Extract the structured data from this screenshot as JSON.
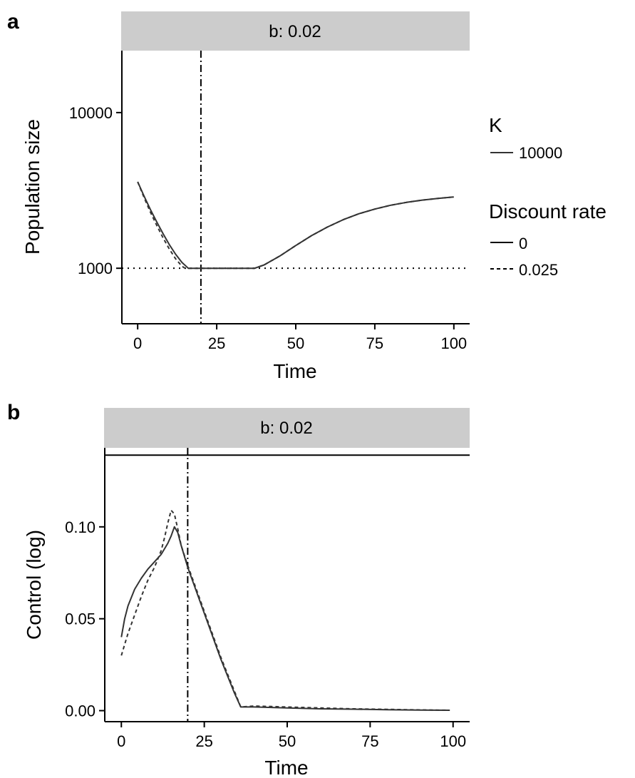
{
  "legend": {
    "k_title": "K",
    "k_entries": [
      {
        "label": "10000",
        "style": "solid"
      }
    ],
    "discount_title": "Discount rate",
    "discount_entries": [
      {
        "label": "0",
        "style": "solid"
      },
      {
        "label": "0.025",
        "style": "dashed"
      }
    ]
  },
  "chart_data": [
    {
      "panel_label": "a",
      "type": "line",
      "facet_strip": "b: 0.02",
      "xlabel": "Time",
      "ylabel": "Population size",
      "xlim": [
        -5,
        105
      ],
      "ylim": [
        440,
        25000
      ],
      "y_scale": "log",
      "x_ticks": [
        0,
        25,
        50,
        75,
        100
      ],
      "x_tick_labels": [
        "0",
        "25",
        "50",
        "75",
        "100"
      ],
      "y_ticks": [
        1000,
        10000
      ],
      "y_tick_labels": [
        "1000",
        "10000"
      ],
      "vline": {
        "x": 20,
        "style": "dashdot"
      },
      "hline": {
        "y": 1000,
        "style": "dotted"
      },
      "grid": false,
      "series": [
        {
          "name": "0",
          "style": "solid",
          "color": "#333333",
          "x": [
            0,
            2,
            4,
            6,
            8,
            10,
            12,
            14,
            16,
            20,
            25,
            30,
            35,
            37,
            40,
            45,
            50,
            55,
            60,
            65,
            70,
            75,
            80,
            85,
            90,
            95,
            100
          ],
          "y": [
            3590,
            2910,
            2390,
            1990,
            1670,
            1420,
            1230,
            1090,
            1000,
            1000,
            1000,
            1000,
            1000,
            1000,
            1050,
            1200,
            1400,
            1620,
            1840,
            2050,
            2240,
            2400,
            2540,
            2650,
            2740,
            2810,
            2870
          ]
        },
        {
          "name": "0.025",
          "style": "dashed",
          "color": "#333333",
          "x": [
            0,
            2,
            4,
            6,
            8,
            10,
            12,
            14,
            15,
            20,
            25,
            30,
            35,
            37,
            40,
            45,
            50,
            55,
            60,
            65,
            70,
            75,
            80,
            85,
            90,
            95,
            100
          ],
          "y": [
            3590,
            2850,
            2300,
            1890,
            1570,
            1330,
            1150,
            1030,
            1000,
            1000,
            1000,
            1000,
            1000,
            1000,
            1050,
            1200,
            1400,
            1620,
            1840,
            2050,
            2240,
            2400,
            2540,
            2650,
            2740,
            2810,
            2870
          ]
        }
      ]
    },
    {
      "panel_label": "b",
      "type": "line",
      "facet_strip": "b: 0.02",
      "xlabel": "Time",
      "ylabel": "Control (log)",
      "xlim": [
        -5,
        105
      ],
      "ylim": [
        -0.006,
        0.143
      ],
      "x_ticks": [
        0,
        25,
        50,
        75,
        100
      ],
      "x_tick_labels": [
        "0",
        "25",
        "50",
        "75",
        "100"
      ],
      "y_ticks": [
        0,
        0.05,
        0.1
      ],
      "y_tick_labels": [
        "0.00",
        "0.05",
        "0.10"
      ],
      "vline": {
        "x": 20,
        "style": "dashdot"
      },
      "hline": {
        "y": 0.139,
        "style": "solid"
      },
      "grid": false,
      "series": [
        {
          "name": "0",
          "style": "solid",
          "color": "#333333",
          "x": [
            0,
            1,
            2,
            4,
            6,
            8,
            10,
            12,
            14,
            15,
            16,
            17,
            18,
            20,
            22,
            24,
            26,
            28,
            30,
            32,
            34,
            36,
            40,
            50,
            60,
            70,
            80,
            90,
            99
          ],
          "y": [
            0.04,
            0.05,
            0.057,
            0.066,
            0.072,
            0.077,
            0.081,
            0.085,
            0.091,
            0.095,
            0.1,
            0.097,
            0.09,
            0.078,
            0.068,
            0.058,
            0.048,
            0.038,
            0.028,
            0.019,
            0.01,
            0.002,
            0.002,
            0.0015,
            0.001,
            0.0008,
            0.0005,
            0.0003,
            0.0002
          ]
        },
        {
          "name": "0.025",
          "style": "dashed",
          "color": "#333333",
          "x": [
            0,
            1,
            2,
            4,
            6,
            8,
            10,
            12,
            13,
            14,
            15,
            16,
            17,
            18,
            20,
            22,
            24,
            26,
            28,
            30,
            32,
            34,
            36,
            40,
            50,
            60,
            70,
            80,
            90,
            99
          ],
          "y": [
            0.03,
            0.036,
            0.042,
            0.052,
            0.062,
            0.071,
            0.078,
            0.087,
            0.094,
            0.102,
            0.109,
            0.107,
            0.099,
            0.09,
            0.079,
            0.069,
            0.059,
            0.049,
            0.039,
            0.029,
            0.02,
            0.011,
            0.002,
            0.0025,
            0.002,
            0.0015,
            0.001,
            0.0007,
            0.0004,
            0.0002
          ]
        }
      ]
    }
  ]
}
